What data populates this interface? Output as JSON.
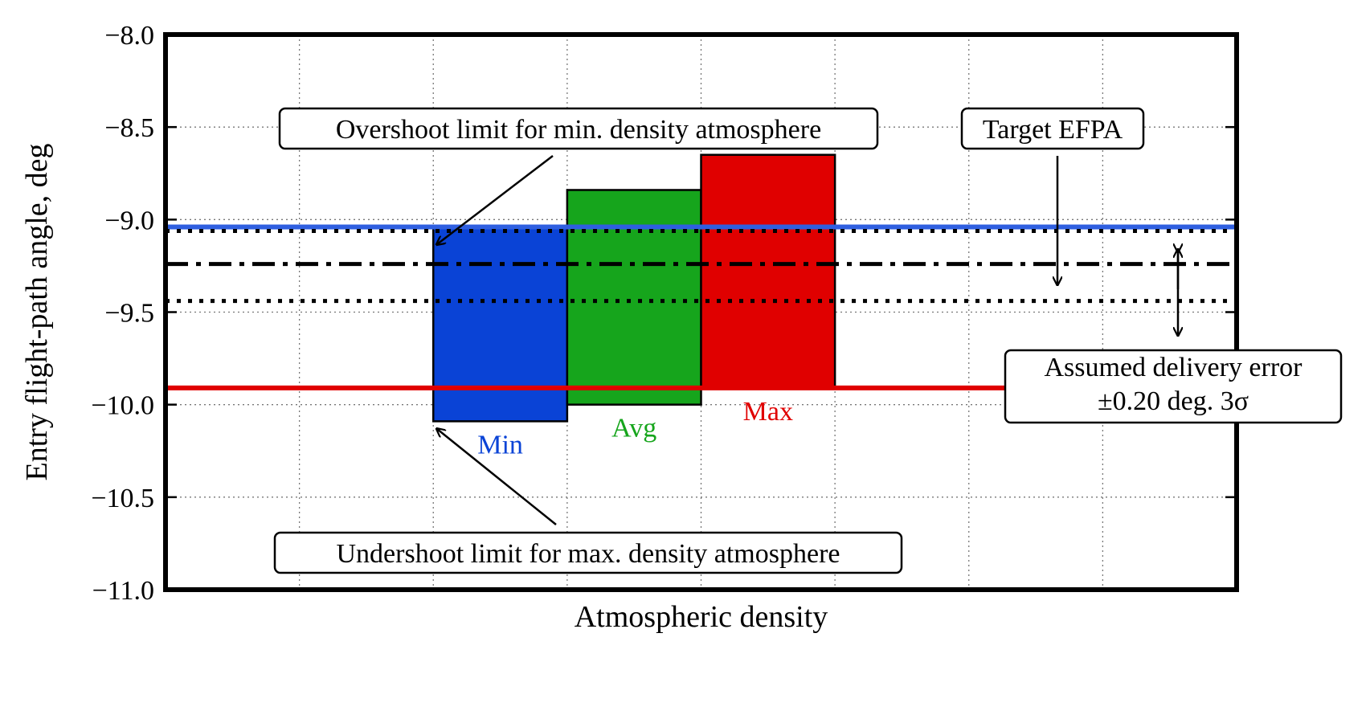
{
  "chart_data": {
    "type": "bar",
    "title": "",
    "xlabel": "Atmospheric density",
    "ylabel": "Entry flight-path angle, deg",
    "ylim": [
      -11.0,
      -8.0
    ],
    "yticks": [
      -8.0,
      -8.5,
      -9.0,
      -9.5,
      -10.0,
      -10.5,
      -11.0
    ],
    "ytick_labels": [
      "−8.0",
      "−8.5",
      "−9.0",
      "−9.5",
      "−10.0",
      "−10.5",
      "−11.0"
    ],
    "grid": true,
    "bars": [
      {
        "label": "Min",
        "bottom": -10.09,
        "top": -9.04,
        "color": "#0a43d6"
      },
      {
        "label": "Avg",
        "bottom": -10.0,
        "top": -8.84,
        "color": "#16a51c"
      },
      {
        "label": "Max",
        "bottom": -9.91,
        "top": -8.65,
        "color": "#e00000"
      }
    ],
    "reference_lines": [
      {
        "name": "overshoot_limit_min_density",
        "value": -9.04,
        "style": "solid",
        "color": "#2f5fe0"
      },
      {
        "name": "undershoot_limit_max_density",
        "value": -9.91,
        "style": "solid",
        "color": "#e00000"
      },
      {
        "name": "target_efpa",
        "value": -9.24,
        "style": "dashdot",
        "color": "#000000"
      },
      {
        "name": "delivery_error_upper",
        "value": -9.04,
        "style": "dotted",
        "color": "#000000"
      },
      {
        "name": "delivery_error_lower",
        "value": -9.44,
        "style": "dotted",
        "color": "#000000"
      }
    ],
    "annotations": {
      "overshoot": "Overshoot limit for min. density atmosphere",
      "undershoot": "Undershoot limit for max. density atmosphere",
      "target": "Target EFPA",
      "delivery_line1": "Assumed delivery error",
      "delivery_line2": "±0.20 deg. 3σ"
    }
  }
}
